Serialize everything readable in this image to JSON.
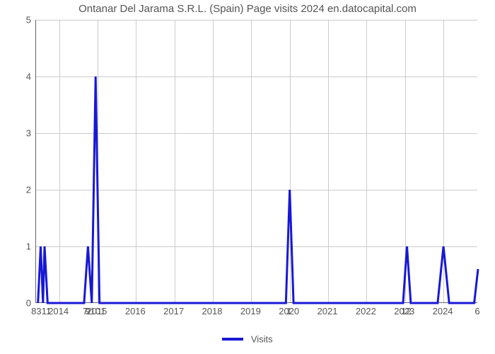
{
  "chart": {
    "type": "line",
    "title": "Ontanar Del Jarama S.R.L. (Spain) Page visits 2024 en.datocapital.com",
    "title_fontsize": 15,
    "title_color": "#555555",
    "ylabel": "",
    "ylim": [
      0,
      5
    ],
    "yticks": [
      0,
      1,
      2,
      3,
      4,
      5
    ],
    "xlim": [
      2013.4,
      2024.9
    ],
    "xticks": [
      2014,
      2015,
      2016,
      2017,
      2018,
      2019,
      2020,
      2021,
      2022,
      2023,
      2024
    ],
    "background_color": "#ffffff",
    "grid_color": "#cccccc",
    "axis_color": "#666666",
    "tick_fontsize": 13,
    "tick_color": "#555555",
    "line_color": "#1818d6",
    "line_width": 3,
    "legend": {
      "label": "Visits",
      "color": "#1818d6"
    },
    "series": {
      "x": [
        2013.45,
        2013.52,
        2013.58,
        2013.62,
        2013.7,
        2013.78,
        2013.85,
        2013.95,
        2014.1,
        2014.3,
        2014.55,
        2014.65,
        2014.75,
        2014.85,
        2014.95,
        2015.05,
        2015.15,
        2015.25,
        2015.35,
        2016.0,
        2017.0,
        2018.0,
        2018.5,
        2019.0,
        2019.5,
        2019.7,
        2019.9,
        2020.0,
        2020.1,
        2020.5,
        2021.0,
        2021.5,
        2022.0,
        2022.5,
        2022.8,
        2022.95,
        2023.05,
        2023.15,
        2023.5,
        2023.85,
        2024.0,
        2024.15,
        2024.3,
        2024.5,
        2024.7,
        2024.8,
        2024.9
      ],
      "y": [
        0,
        1,
        0,
        1,
        0,
        0,
        0,
        0,
        0,
        0,
        0,
        0,
        1,
        0,
        4,
        0,
        0,
        0,
        0,
        0,
        0,
        0,
        0,
        0,
        0,
        0,
        0,
        2,
        0,
        0,
        0,
        0,
        0,
        0,
        0,
        0,
        1,
        0,
        0,
        0,
        1,
        0,
        0,
        0,
        0,
        0,
        0.6
      ]
    },
    "value_labels": [
      {
        "x": 2013.55,
        "text": "8311"
      },
      {
        "x": 2014.7,
        "text": "7"
      },
      {
        "x": 2014.96,
        "text": "9101"
      },
      {
        "x": 2020.0,
        "text": "1"
      },
      {
        "x": 2023.05,
        "text": "12"
      },
      {
        "x": 2024.9,
        "text": "6"
      }
    ]
  }
}
